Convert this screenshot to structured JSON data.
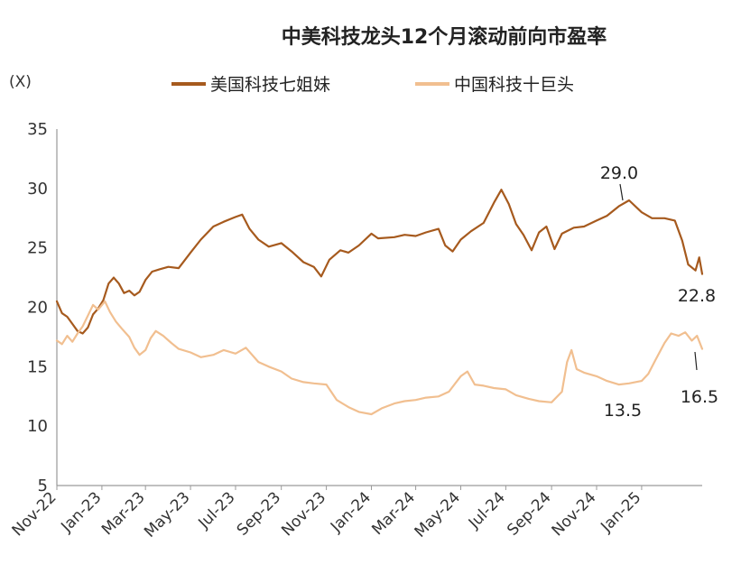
{
  "chart_data": {
    "type": "line",
    "title": "中美科技龙头12个月滚动前向市盈率",
    "unit_label": "(X)",
    "ylim": [
      5,
      35
    ],
    "yticks": [
      5,
      10,
      15,
      20,
      25,
      30,
      35
    ],
    "x_range": [
      "2022-11-01",
      "2025-03-24"
    ],
    "xticks": [
      "Nov-22",
      "Jan-23",
      "Mar-23",
      "May-23",
      "Jul-23",
      "Sep-23",
      "Nov-23",
      "Jan-24",
      "Mar-24",
      "May-24",
      "Jul-24",
      "Sep-24",
      "Nov-24",
      "Jan-25"
    ],
    "grid": false,
    "legend_position": "top",
    "series": [
      {
        "name": "美国科技七姐妹",
        "color": "#a65a1e",
        "points": [
          [
            "2022-11-01",
            20.5
          ],
          [
            "2022-11-08",
            19.5
          ],
          [
            "2022-11-15",
            19.2
          ],
          [
            "2022-11-22",
            18.6
          ],
          [
            "2022-11-29",
            18.0
          ],
          [
            "2022-12-06",
            17.8
          ],
          [
            "2022-12-13",
            18.3
          ],
          [
            "2022-12-20",
            19.4
          ],
          [
            "2022-12-27",
            19.9
          ],
          [
            "2023-01-03",
            20.6
          ],
          [
            "2023-01-10",
            22.0
          ],
          [
            "2023-01-17",
            22.5
          ],
          [
            "2023-01-24",
            22.0
          ],
          [
            "2023-01-31",
            21.2
          ],
          [
            "2023-02-07",
            21.4
          ],
          [
            "2023-02-14",
            21.0
          ],
          [
            "2023-02-21",
            21.3
          ],
          [
            "2023-03-01",
            22.3
          ],
          [
            "2023-03-10",
            23.0
          ],
          [
            "2023-03-20",
            23.2
          ],
          [
            "2023-04-01",
            23.4
          ],
          [
            "2023-04-15",
            23.3
          ],
          [
            "2023-05-01",
            24.6
          ],
          [
            "2023-05-15",
            25.7
          ],
          [
            "2023-06-01",
            26.8
          ],
          [
            "2023-06-15",
            27.2
          ],
          [
            "2023-07-01",
            27.6
          ],
          [
            "2023-07-10",
            27.8
          ],
          [
            "2023-07-20",
            26.6
          ],
          [
            "2023-08-01",
            25.7
          ],
          [
            "2023-08-15",
            25.1
          ],
          [
            "2023-09-01",
            25.4
          ],
          [
            "2023-09-15",
            24.7
          ],
          [
            "2023-10-01",
            23.8
          ],
          [
            "2023-10-15",
            23.4
          ],
          [
            "2023-10-25",
            22.6
          ],
          [
            "2023-11-05",
            24.0
          ],
          [
            "2023-11-20",
            24.8
          ],
          [
            "2023-12-01",
            24.6
          ],
          [
            "2023-12-15",
            25.2
          ],
          [
            "2024-01-01",
            26.2
          ],
          [
            "2024-01-10",
            25.8
          ],
          [
            "2024-02-01",
            25.9
          ],
          [
            "2024-02-15",
            26.1
          ],
          [
            "2024-03-01",
            26.0
          ],
          [
            "2024-03-15",
            26.3
          ],
          [
            "2024-04-01",
            26.6
          ],
          [
            "2024-04-10",
            25.2
          ],
          [
            "2024-04-20",
            24.7
          ],
          [
            "2024-05-01",
            25.7
          ],
          [
            "2024-05-15",
            26.4
          ],
          [
            "2024-06-01",
            27.1
          ],
          [
            "2024-06-15",
            28.8
          ],
          [
            "2024-06-25",
            29.9
          ],
          [
            "2024-07-05",
            28.7
          ],
          [
            "2024-07-15",
            27.0
          ],
          [
            "2024-07-25",
            26.1
          ],
          [
            "2024-08-05",
            24.8
          ],
          [
            "2024-08-15",
            26.3
          ],
          [
            "2024-08-25",
            26.8
          ],
          [
            "2024-09-05",
            24.9
          ],
          [
            "2024-09-15",
            26.2
          ],
          [
            "2024-10-01",
            26.7
          ],
          [
            "2024-10-15",
            26.8
          ],
          [
            "2024-11-01",
            27.3
          ],
          [
            "2024-11-15",
            27.7
          ],
          [
            "2024-12-01",
            28.5
          ],
          [
            "2024-12-15",
            29.0
          ],
          [
            "2025-01-01",
            28.0
          ],
          [
            "2025-01-15",
            27.5
          ],
          [
            "2025-02-01",
            27.5
          ],
          [
            "2025-02-15",
            27.3
          ],
          [
            "2025-02-25",
            25.6
          ],
          [
            "2025-03-05",
            23.6
          ],
          [
            "2025-03-15",
            23.1
          ],
          [
            "2025-03-20",
            24.2
          ],
          [
            "2025-03-24",
            22.8
          ]
        ]
      },
      {
        "name": "中国科技十巨头",
        "color": "#f1bf90",
        "points": [
          [
            "2022-11-01",
            17.2
          ],
          [
            "2022-11-08",
            16.9
          ],
          [
            "2022-11-15",
            17.6
          ],
          [
            "2022-11-22",
            17.1
          ],
          [
            "2022-11-29",
            17.8
          ],
          [
            "2022-12-06",
            18.4
          ],
          [
            "2022-12-13",
            19.3
          ],
          [
            "2022-12-20",
            20.2
          ],
          [
            "2022-12-27",
            19.8
          ],
          [
            "2023-01-05",
            20.5
          ],
          [
            "2023-01-12",
            19.6
          ],
          [
            "2023-01-20",
            18.8
          ],
          [
            "2023-01-28",
            18.2
          ],
          [
            "2023-02-07",
            17.5
          ],
          [
            "2023-02-14",
            16.6
          ],
          [
            "2023-02-21",
            16.0
          ],
          [
            "2023-03-01",
            16.4
          ],
          [
            "2023-03-08",
            17.4
          ],
          [
            "2023-03-15",
            18.0
          ],
          [
            "2023-03-25",
            17.6
          ],
          [
            "2023-04-05",
            17.0
          ],
          [
            "2023-04-15",
            16.5
          ],
          [
            "2023-05-01",
            16.2
          ],
          [
            "2023-05-15",
            15.8
          ],
          [
            "2023-06-01",
            16.0
          ],
          [
            "2023-06-15",
            16.4
          ],
          [
            "2023-07-01",
            16.1
          ],
          [
            "2023-07-15",
            16.6
          ],
          [
            "2023-08-01",
            15.4
          ],
          [
            "2023-08-15",
            15.0
          ],
          [
            "2023-09-01",
            14.6
          ],
          [
            "2023-09-15",
            14.0
          ],
          [
            "2023-10-01",
            13.7
          ],
          [
            "2023-10-15",
            13.6
          ],
          [
            "2023-11-01",
            13.5
          ],
          [
            "2023-11-15",
            12.2
          ],
          [
            "2023-12-01",
            11.6
          ],
          [
            "2023-12-15",
            11.2
          ],
          [
            "2024-01-01",
            11.0
          ],
          [
            "2024-01-15",
            11.5
          ],
          [
            "2024-02-01",
            11.9
          ],
          [
            "2024-02-15",
            12.1
          ],
          [
            "2024-03-01",
            12.2
          ],
          [
            "2024-03-15",
            12.4
          ],
          [
            "2024-04-01",
            12.5
          ],
          [
            "2024-04-15",
            12.9
          ],
          [
            "2024-05-01",
            14.2
          ],
          [
            "2024-05-10",
            14.6
          ],
          [
            "2024-05-20",
            13.5
          ],
          [
            "2024-06-01",
            13.4
          ],
          [
            "2024-06-15",
            13.2
          ],
          [
            "2024-07-01",
            13.1
          ],
          [
            "2024-07-15",
            12.6
          ],
          [
            "2024-08-01",
            12.3
          ],
          [
            "2024-08-15",
            12.1
          ],
          [
            "2024-09-01",
            12.0
          ],
          [
            "2024-09-15",
            12.9
          ],
          [
            "2024-09-22",
            15.4
          ],
          [
            "2024-09-28",
            16.4
          ],
          [
            "2024-10-05",
            14.8
          ],
          [
            "2024-10-15",
            14.5
          ],
          [
            "2024-11-01",
            14.2
          ],
          [
            "2024-11-15",
            13.8
          ],
          [
            "2024-12-01",
            13.5
          ],
          [
            "2024-12-15",
            13.6
          ],
          [
            "2025-01-01",
            13.8
          ],
          [
            "2025-01-10",
            14.4
          ],
          [
            "2025-01-20",
            15.6
          ],
          [
            "2025-02-01",
            17.0
          ],
          [
            "2025-02-10",
            17.8
          ],
          [
            "2025-02-20",
            17.6
          ],
          [
            "2025-03-01",
            17.9
          ],
          [
            "2025-03-10",
            17.2
          ],
          [
            "2025-03-17",
            17.6
          ],
          [
            "2025-03-24",
            16.5
          ]
        ]
      }
    ],
    "annotations": [
      {
        "text": "29.0",
        "series": 0,
        "value": 29.0
      },
      {
        "text": "22.8",
        "series": 0,
        "value": 22.8
      },
      {
        "text": "13.5",
        "series": 1,
        "value": 13.5
      },
      {
        "text": "16.5",
        "series": 1,
        "value": 16.5
      }
    ]
  }
}
